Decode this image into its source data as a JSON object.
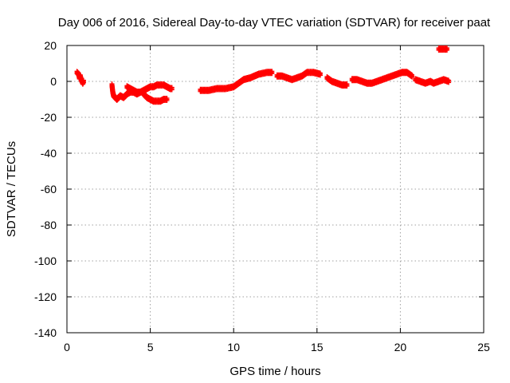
{
  "chart_data": {
    "type": "scatter",
    "title": "Day 006 of 2016, Sidereal Day-to-day VTEC variation (SDTVAR) for receiver paat",
    "xlabel": "GPS time / hours",
    "ylabel": "SDTVAR / TECUs",
    "xlim": [
      0,
      25
    ],
    "ylim": [
      -140,
      20
    ],
    "xticks": [
      0,
      5,
      10,
      15,
      20,
      25
    ],
    "yticks": [
      20,
      0,
      -20,
      -40,
      -60,
      -80,
      -100,
      -120,
      -140
    ],
    "grid": true,
    "marker": "+",
    "series": [
      {
        "name": "SDTVAR",
        "color": "#ff0000",
        "segments": [
          [
            [
              0.6,
              5
            ],
            [
              0.7,
              4
            ],
            [
              0.75,
              2
            ],
            [
              0.8,
              3
            ],
            [
              0.85,
              1
            ],
            [
              0.9,
              0
            ],
            [
              0.95,
              -1
            ],
            [
              1.0,
              0
            ]
          ],
          [
            [
              2.7,
              -2
            ],
            [
              2.75,
              -6
            ],
            [
              2.8,
              -8
            ],
            [
              2.9,
              -9
            ],
            [
              3.0,
              -10
            ],
            [
              3.2,
              -8
            ],
            [
              3.4,
              -9
            ],
            [
              3.6,
              -7
            ],
            [
              3.8,
              -6
            ],
            [
              4.0,
              -6
            ],
            [
              4.2,
              -7
            ],
            [
              4.4,
              -6
            ]
          ],
          [
            [
              3.6,
              -3
            ],
            [
              3.8,
              -4
            ],
            [
              4.0,
              -5
            ],
            [
              4.2,
              -6
            ],
            [
              4.4,
              -6
            ],
            [
              4.6,
              -5
            ],
            [
              4.8,
              -4
            ],
            [
              5.0,
              -3
            ],
            [
              5.2,
              -3
            ],
            [
              5.4,
              -2
            ],
            [
              5.6,
              -2
            ],
            [
              5.8,
              -2
            ],
            [
              6.0,
              -3
            ],
            [
              6.2,
              -4
            ],
            [
              6.3,
              -4
            ]
          ],
          [
            [
              4.6,
              -7
            ],
            [
              4.8,
              -9
            ],
            [
              5.0,
              -10
            ],
            [
              5.2,
              -11
            ],
            [
              5.4,
              -11
            ],
            [
              5.6,
              -11
            ],
            [
              5.8,
              -10
            ],
            [
              6.0,
              -10
            ]
          ],
          [
            [
              8.0,
              -5
            ],
            [
              8.5,
              -5
            ],
            [
              9.0,
              -4
            ],
            [
              9.5,
              -4
            ],
            [
              10.0,
              -3
            ],
            [
              10.3,
              -1
            ],
            [
              10.6,
              1
            ],
            [
              11.0,
              2
            ],
            [
              11.5,
              4
            ],
            [
              12.0,
              5
            ],
            [
              12.3,
              5
            ]
          ],
          [
            [
              12.6,
              3
            ],
            [
              12.9,
              3
            ],
            [
              13.2,
              2
            ],
            [
              13.5,
              1
            ],
            [
              13.8,
              2
            ],
            [
              14.1,
              3
            ],
            [
              14.4,
              5
            ],
            [
              14.8,
              5
            ],
            [
              15.2,
              4
            ]
          ],
          [
            [
              15.6,
              2
            ],
            [
              15.9,
              0
            ],
            [
              16.2,
              -1
            ],
            [
              16.5,
              -2
            ],
            [
              16.8,
              -2
            ]
          ],
          [
            [
              17.1,
              1
            ],
            [
              17.4,
              1
            ],
            [
              17.7,
              0
            ],
            [
              18.0,
              -1
            ],
            [
              18.3,
              -1
            ],
            [
              18.6,
              0
            ],
            [
              18.9,
              1
            ],
            [
              19.2,
              2
            ],
            [
              19.5,
              3
            ],
            [
              19.8,
              4
            ],
            [
              20.1,
              5
            ],
            [
              20.4,
              5
            ],
            [
              20.7,
              3
            ]
          ],
          [
            [
              20.9,
              1
            ],
            [
              21.2,
              0
            ],
            [
              21.5,
              -1
            ],
            [
              21.8,
              0
            ],
            [
              22.0,
              -1
            ],
            [
              22.3,
              0
            ],
            [
              22.6,
              1
            ],
            [
              22.9,
              0
            ]
          ],
          [
            [
              22.3,
              18
            ],
            [
              22.8,
              18
            ]
          ]
        ]
      }
    ]
  }
}
